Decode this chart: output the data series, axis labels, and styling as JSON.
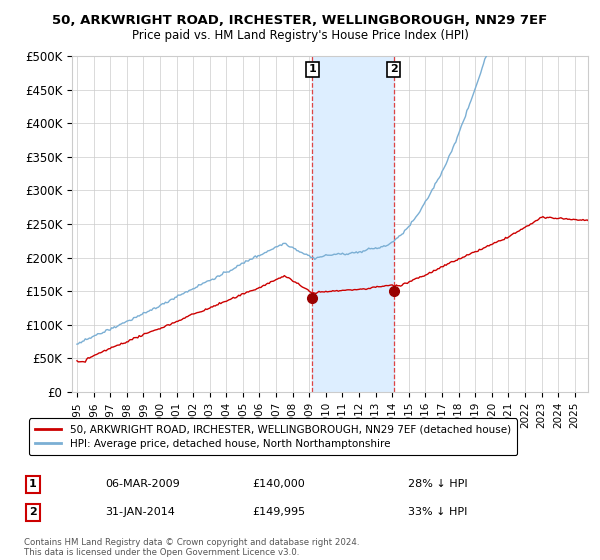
{
  "title1": "50, ARKWRIGHT ROAD, IRCHESTER, WELLINGBOROUGH, NN29 7EF",
  "title2": "Price paid vs. HM Land Registry's House Price Index (HPI)",
  "ylabel_ticks": [
    "£0",
    "£50K",
    "£100K",
    "£150K",
    "£200K",
    "£250K",
    "£300K",
    "£350K",
    "£400K",
    "£450K",
    "£500K"
  ],
  "ytick_vals": [
    0,
    50000,
    100000,
    150000,
    200000,
    250000,
    300000,
    350000,
    400000,
    450000,
    500000
  ],
  "ylim": [
    0,
    500000
  ],
  "transaction1": {
    "date_num": 2009.18,
    "price": 140000,
    "label": "1",
    "date_str": "06-MAR-2009",
    "pct": "28% ↓ HPI"
  },
  "transaction2": {
    "date_num": 2014.08,
    "price": 149995,
    "label": "2",
    "date_str": "31-JAN-2014",
    "pct": "33% ↓ HPI"
  },
  "legend_line1": "50, ARKWRIGHT ROAD, IRCHESTER, WELLINGBOROUGH, NN29 7EF (detached house)",
  "legend_line2": "HPI: Average price, detached house, North Northamptonshire",
  "footnote": "Contains HM Land Registry data © Crown copyright and database right 2024.\nThis data is licensed under the Open Government Licence v3.0.",
  "red_color": "#cc0000",
  "blue_color": "#7bafd4",
  "shade_color": "#ddeeff",
  "vline_color": "#dd4444",
  "grid_color": "#cccccc",
  "bg_color": "#ffffff"
}
